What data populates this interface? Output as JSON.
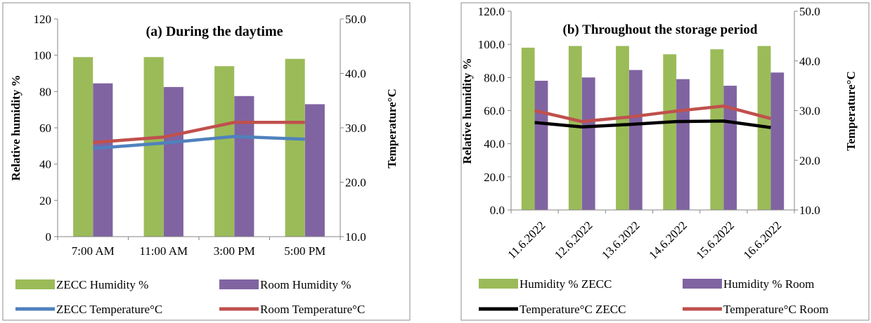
{
  "chart_data": [
    {
      "type": "bar+line",
      "title": "(a) During the daytime",
      "categories": [
        "7:00 AM",
        "11:00 AM",
        "3:00 PM",
        "5:00 PM"
      ],
      "ylabel": "Relative humidity %",
      "y2label": "Temperature°C",
      "ylim": [
        0,
        120
      ],
      "y2lim": [
        10,
        50
      ],
      "yticks": [
        "0",
        "20",
        "40",
        "60",
        "80",
        "100",
        "120"
      ],
      "y2ticks": [
        "10.0",
        "20.0",
        "30.0",
        "40.0",
        "50.0"
      ],
      "xticks_rotated": false,
      "legend_columns": 2,
      "legend_placement": "bottom",
      "bar_series": [
        {
          "name": "ZECC Humidity %",
          "color": "#9bbb59",
          "values": [
            99,
            99,
            94,
            98
          ]
        },
        {
          "name": "Room Humidity %",
          "color": "#8064a2",
          "values": [
            84.5,
            82.5,
            77.5,
            73
          ]
        }
      ],
      "line_series": [
        {
          "name": "ZECC Temperature°C",
          "color": "#4f81bd",
          "values": [
            26.2,
            27.2,
            28.4,
            27.9
          ]
        },
        {
          "name": "Room Temperature°C",
          "color": "#c0504d",
          "values": [
            27.3,
            28.3,
            31.0,
            31.0
          ]
        }
      ],
      "legend_order": [
        {
          "kind": "bar",
          "index": 0
        },
        {
          "kind": "bar",
          "index": 1
        },
        {
          "kind": "line",
          "index": 0
        },
        {
          "kind": "line",
          "index": 1
        }
      ],
      "grid": false
    },
    {
      "type": "bar+line",
      "title": "(b) Throughout the storage period",
      "categories": [
        "11.6.2022",
        "12.6.2022",
        "13.6.2022",
        "14.6.2022",
        "15.6.2022",
        "16.6.2022"
      ],
      "ylabel": "Relative humidity %",
      "y2label": "Temperature°C",
      "ylim": [
        0,
        120
      ],
      "y2lim": [
        10,
        50
      ],
      "yticks": [
        "0.0",
        "20.0",
        "40.0",
        "60.0",
        "80.0",
        "100.0",
        "120.0"
      ],
      "y2ticks": [
        "10.0",
        "20.0",
        "30.0",
        "40.0",
        "50.0"
      ],
      "xticks_rotated": true,
      "legend_columns": 2,
      "legend_placement": "bottom",
      "bar_series": [
        {
          "name": "Humidity % ZECC",
          "color": "#9bbb59",
          "values": [
            98,
            99,
            99,
            94,
            97,
            99
          ]
        },
        {
          "name": "Humidity % Room",
          "color": "#8064a2",
          "values": [
            78,
            80,
            84.5,
            79,
            75,
            83
          ]
        }
      ],
      "line_series": [
        {
          "name": "Temperature°C ZECC",
          "color": "#000000",
          "values": [
            27.6,
            26.7,
            27.2,
            27.8,
            27.9,
            26.6
          ]
        },
        {
          "name": "Temperature°C Room",
          "color": "#c0504d",
          "values": [
            30.0,
            27.8,
            28.7,
            29.9,
            30.9,
            28.4
          ]
        }
      ],
      "legend_order": [
        {
          "kind": "bar",
          "index": 0
        },
        {
          "kind": "bar",
          "index": 1
        },
        {
          "kind": "line",
          "index": 0
        },
        {
          "kind": "line",
          "index": 1
        }
      ],
      "grid": false
    }
  ]
}
